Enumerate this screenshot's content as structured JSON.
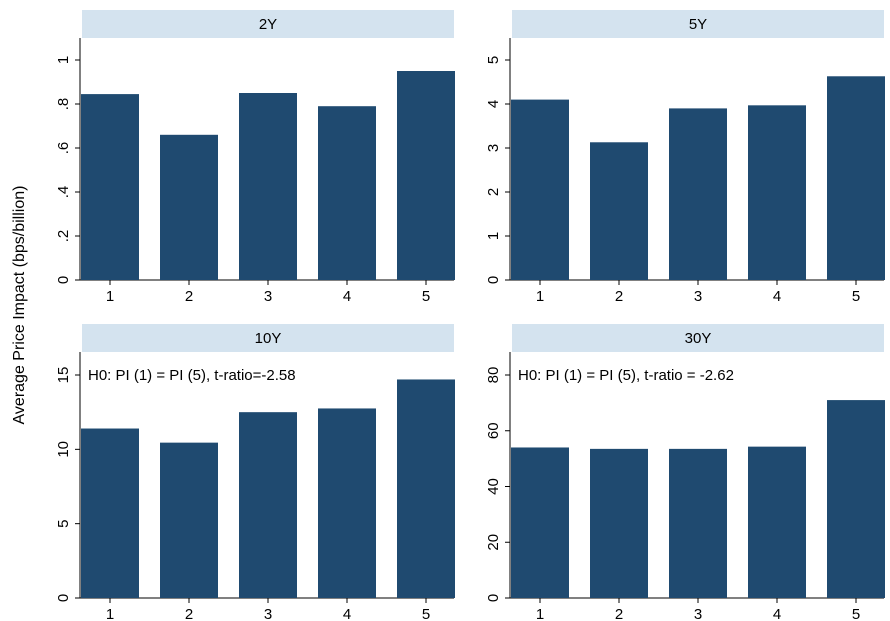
{
  "chart_data": {
    "type": "bar",
    "ylabel": "Average Price Impact (bps/billion)",
    "bar_color": "#1f4a70",
    "header_color": "#d4e3ef",
    "panels": [
      {
        "title": "2Y",
        "categories": [
          "1",
          "2",
          "3",
          "4",
          "5"
        ],
        "values": [
          0.845,
          0.66,
          0.85,
          0.79,
          0.95
        ],
        "ylim": [
          0,
          1.0
        ],
        "yticks": [
          0,
          0.2,
          0.4,
          0.6,
          0.8,
          1.0
        ],
        "ytick_labels": [
          "0",
          ".2",
          ".4",
          ".6",
          ".8",
          "1"
        ],
        "annotation": ""
      },
      {
        "title": "5Y",
        "categories": [
          "1",
          "2",
          "3",
          "4",
          "5"
        ],
        "values": [
          4.1,
          3.13,
          3.9,
          3.97,
          4.63
        ],
        "ylim": [
          0,
          5
        ],
        "yticks": [
          0,
          1,
          2,
          3,
          4,
          5
        ],
        "ytick_labels": [
          "0",
          "1",
          "2",
          "3",
          "4",
          "5"
        ],
        "annotation": ""
      },
      {
        "title": "10Y",
        "categories": [
          "1",
          "2",
          "3",
          "4",
          "5"
        ],
        "values": [
          11.4,
          10.45,
          12.5,
          12.75,
          14.7
        ],
        "ylim": [
          0,
          15
        ],
        "yticks": [
          0,
          5,
          10,
          15
        ],
        "ytick_labels": [
          "0",
          "5",
          "10",
          "15"
        ],
        "annotation": "H0: PI (1) = PI (5), t-ratio=-2.58"
      },
      {
        "title": "30Y",
        "categories": [
          "1",
          "2",
          "3",
          "4",
          "5"
        ],
        "values": [
          54,
          53.5,
          53.5,
          54.3,
          71
        ],
        "ylim": [
          0,
          80
        ],
        "yticks": [
          0,
          20,
          40,
          60,
          80
        ],
        "ytick_labels": [
          "0",
          "20",
          "40",
          "60",
          "80"
        ],
        "annotation": "H0: PI (1) = PI (5), t-ratio = -2.62"
      }
    ]
  }
}
